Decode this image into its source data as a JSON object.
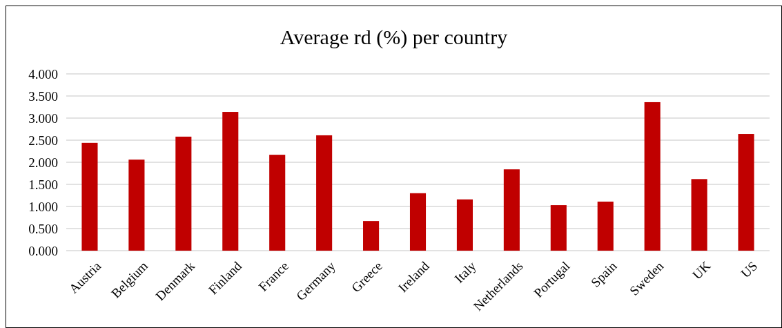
{
  "chart_data": {
    "type": "bar",
    "title": "Average rd (%) per country",
    "categories": [
      "Austria",
      "Belgium",
      "Denmark",
      "Finland",
      "France",
      "Germany",
      "Greece",
      "Ireland",
      "Italy",
      "Netherlands",
      "Portugal",
      "Spain",
      "Sweden",
      "UK",
      "US"
    ],
    "values": [
      2.44,
      2.06,
      2.58,
      3.14,
      2.17,
      2.61,
      0.67,
      1.3,
      1.16,
      1.84,
      1.03,
      1.11,
      3.36,
      1.62,
      2.64
    ],
    "color": "#c00000",
    "ylim": [
      0,
      4
    ],
    "yticks": [
      {
        "value": 0,
        "label": "0.000"
      },
      {
        "value": 0.5,
        "label": "0.500"
      },
      {
        "value": 1,
        "label": "1.000"
      },
      {
        "value": 1.5,
        "label": "1.500"
      },
      {
        "value": 2,
        "label": "2.000"
      },
      {
        "value": 2.5,
        "label": "2.500"
      },
      {
        "value": 3,
        "label": "3.000"
      },
      {
        "value": 3.5,
        "label": "3.500"
      },
      {
        "value": 4,
        "label": "4.000"
      }
    ],
    "grid": "y"
  }
}
